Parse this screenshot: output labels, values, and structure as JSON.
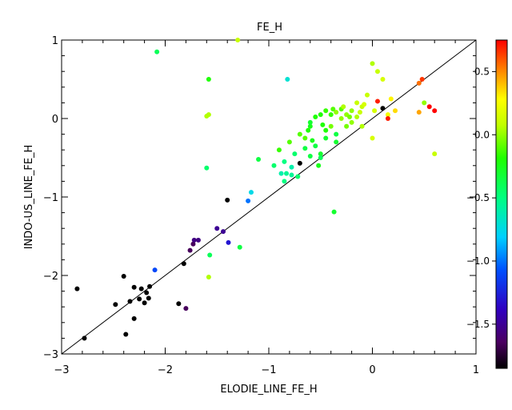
{
  "chart_data": {
    "type": "scatter",
    "title": "FE_H",
    "xlabel": "ELODIE_LINE_FE_H",
    "ylabel": "INDO-US_LINE_FE_H",
    "xlim": [
      -3,
      1
    ],
    "ylim": [
      -3,
      1
    ],
    "xticks": [
      -3,
      -2,
      -1,
      0,
      1
    ],
    "xtick_labels": [
      "−3",
      "−2",
      "−1",
      "0",
      "1"
    ],
    "yticks": [
      -3,
      -2,
      -1,
      0,
      1
    ],
    "ytick_labels": [
      "−3",
      "−2",
      "−1",
      "0",
      "1"
    ],
    "reference_line": "y = x",
    "grid": false,
    "colorbar": {
      "colormap": "rainbow",
      "range": [
        -1.85,
        0.75
      ],
      "ticks": [
        0.5,
        0.0,
        -0.5,
        -1.0,
        -1.5
      ],
      "tick_labels": [
        "0.5",
        "0.0",
        "−0.5",
        "−1.0",
        "−1.5"
      ]
    },
    "points": [
      {
        "x": -2.85,
        "y": -2.17,
        "c": -1.85
      },
      {
        "x": -2.78,
        "y": -2.8,
        "c": -1.85
      },
      {
        "x": -2.48,
        "y": -2.37,
        "c": -1.85
      },
      {
        "x": -2.4,
        "y": -2.01,
        "c": -1.85
      },
      {
        "x": -2.38,
        "y": -2.75,
        "c": -1.85
      },
      {
        "x": -2.34,
        "y": -2.33,
        "c": -1.85
      },
      {
        "x": -2.3,
        "y": -2.15,
        "c": -1.85
      },
      {
        "x": -2.3,
        "y": -2.55,
        "c": -1.85
      },
      {
        "x": -2.25,
        "y": -2.3,
        "c": -1.85
      },
      {
        "x": -2.23,
        "y": -2.17,
        "c": -1.85
      },
      {
        "x": -2.2,
        "y": -2.35,
        "c": -1.85
      },
      {
        "x": -2.18,
        "y": -2.22,
        "c": -1.85
      },
      {
        "x": -2.16,
        "y": -2.29,
        "c": -1.85
      },
      {
        "x": -2.15,
        "y": -2.14,
        "c": -1.85
      },
      {
        "x": -1.87,
        "y": -2.36,
        "c": -1.85
      },
      {
        "x": -1.82,
        "y": -1.85,
        "c": -1.85
      },
      {
        "x": -1.4,
        "y": -1.04,
        "c": -1.85
      },
      {
        "x": -0.7,
        "y": -0.57,
        "c": -1.85
      },
      {
        "x": 0.1,
        "y": 0.13,
        "c": -1.85
      },
      {
        "x": -1.8,
        "y": -2.42,
        "c": -1.65
      },
      {
        "x": -1.76,
        "y": -1.68,
        "c": -1.65
      },
      {
        "x": -1.73,
        "y": -1.6,
        "c": -1.65
      },
      {
        "x": -1.72,
        "y": -1.55,
        "c": -1.55
      },
      {
        "x": -1.68,
        "y": -1.55,
        "c": -1.55
      },
      {
        "x": -1.5,
        "y": -1.4,
        "c": -1.5
      },
      {
        "x": -1.44,
        "y": -1.44,
        "c": -1.5
      },
      {
        "x": -1.39,
        "y": -1.58,
        "c": -1.3
      },
      {
        "x": -2.1,
        "y": -1.93,
        "c": -1.1
      },
      {
        "x": -1.2,
        "y": -1.05,
        "c": -1.0
      },
      {
        "x": -1.17,
        "y": -0.94,
        "c": -0.75
      },
      {
        "x": -0.82,
        "y": 0.5,
        "c": -0.7
      },
      {
        "x": -0.88,
        "y": -0.7,
        "c": -0.6
      },
      {
        "x": -0.83,
        "y": -0.7,
        "c": -0.55
      },
      {
        "x": -0.78,
        "y": -0.72,
        "c": -0.55
      },
      {
        "x": -0.85,
        "y": -0.8,
        "c": -0.5
      },
      {
        "x": -0.72,
        "y": -0.74,
        "c": -0.45
      },
      {
        "x": -2.08,
        "y": 0.85,
        "c": -0.4
      },
      {
        "x": -1.6,
        "y": -0.63,
        "c": -0.45
      },
      {
        "x": -1.57,
        "y": -1.74,
        "c": -0.4
      },
      {
        "x": -1.28,
        "y": -1.64,
        "c": -0.35
      },
      {
        "x": -1.1,
        "y": -0.52,
        "c": -0.35
      },
      {
        "x": -0.6,
        "y": -0.48,
        "c": -0.35
      },
      {
        "x": -0.5,
        "y": -0.45,
        "c": -0.3
      },
      {
        "x": -0.35,
        "y": -0.3,
        "c": -0.3
      },
      {
        "x": -0.37,
        "y": -1.19,
        "c": -0.3
      },
      {
        "x": -0.6,
        "y": -0.1,
        "c": -0.25
      },
      {
        "x": -0.55,
        "y": 0.02,
        "c": -0.2
      },
      {
        "x": -0.5,
        "y": 0.05,
        "c": -0.2
      },
      {
        "x": -0.45,
        "y": 0.1,
        "c": -0.15
      },
      {
        "x": -1.58,
        "y": 0.5,
        "c": -0.2
      },
      {
        "x": -0.9,
        "y": -0.4,
        "c": -0.15
      },
      {
        "x": -0.8,
        "y": -0.3,
        "c": -0.1
      },
      {
        "x": -0.7,
        "y": -0.2,
        "c": -0.1
      },
      {
        "x": -0.65,
        "y": -0.25,
        "c": -0.1
      },
      {
        "x": -0.4,
        "y": -0.1,
        "c": -0.05
      },
      {
        "x": -0.3,
        "y": 0.0,
        "c": 0.0
      },
      {
        "x": -0.25,
        "y": 0.05,
        "c": 0.0
      },
      {
        "x": -0.2,
        "y": 0.1,
        "c": 0.0
      },
      {
        "x": -1.6,
        "y": 0.03,
        "c": 0.05
      },
      {
        "x": -1.58,
        "y": 0.05,
        "c": 0.05
      },
      {
        "x": -1.58,
        "y": -2.02,
        "c": 0.05
      },
      {
        "x": -1.3,
        "y": 1.0,
        "c": 0.1
      },
      {
        "x": 0.0,
        "y": 0.7,
        "c": 0.05
      },
      {
        "x": -0.15,
        "y": 0.2,
        "c": 0.1
      },
      {
        "x": -0.1,
        "y": 0.15,
        "c": 0.1
      },
      {
        "x": -0.05,
        "y": 0.3,
        "c": 0.1
      },
      {
        "x": 0.05,
        "y": 0.6,
        "c": 0.1
      },
      {
        "x": 0.0,
        "y": -0.25,
        "c": 0.15
      },
      {
        "x": 0.1,
        "y": 0.5,
        "c": 0.15
      },
      {
        "x": 0.15,
        "y": 0.05,
        "c": 0.25
      },
      {
        "x": 0.18,
        "y": 0.25,
        "c": 0.3
      },
      {
        "x": 0.22,
        "y": 0.1,
        "c": 0.35
      },
      {
        "x": 0.45,
        "y": 0.45,
        "c": 0.55
      },
      {
        "x": 0.45,
        "y": 0.08,
        "c": 0.45
      },
      {
        "x": 0.05,
        "y": 0.22,
        "c": 0.7
      },
      {
        "x": 0.15,
        "y": 0.0,
        "c": 0.7
      },
      {
        "x": 0.55,
        "y": 0.15,
        "c": 0.75
      },
      {
        "x": 0.6,
        "y": 0.1,
        "c": 0.75
      },
      {
        "x": 0.48,
        "y": 0.5,
        "c": 0.65
      },
      {
        "x": 0.6,
        "y": -0.45,
        "c": 0.1
      },
      {
        "x": 0.5,
        "y": 0.2,
        "c": 0.0
      },
      {
        "x": -0.6,
        "y": -0.05,
        "c": -0.3
      },
      {
        "x": -0.35,
        "y": -0.2,
        "c": -0.35
      },
      {
        "x": -0.75,
        "y": -0.45,
        "c": -0.45
      },
      {
        "x": -0.95,
        "y": -0.6,
        "c": -0.45
      },
      {
        "x": -0.55,
        "y": -0.35,
        "c": -0.35
      },
      {
        "x": -0.45,
        "y": -0.25,
        "c": -0.3
      },
      {
        "x": -0.52,
        "y": -0.6,
        "c": -0.25
      },
      {
        "x": -0.62,
        "y": -0.15,
        "c": -0.2
      },
      {
        "x": -0.4,
        "y": 0.05,
        "c": -0.15
      },
      {
        "x": -0.3,
        "y": 0.12,
        "c": -0.1
      },
      {
        "x": -0.25,
        "y": -0.1,
        "c": -0.05
      },
      {
        "x": -0.2,
        "y": -0.05,
        "c": 0.0
      },
      {
        "x": -0.35,
        "y": 0.08,
        "c": 0.0
      },
      {
        "x": -0.15,
        "y": 0.02,
        "c": 0.05
      },
      {
        "x": -0.1,
        "y": -0.1,
        "c": 0.05
      },
      {
        "x": -0.28,
        "y": 0.15,
        "c": 0.05
      },
      {
        "x": -0.12,
        "y": 0.08,
        "c": 0.1
      },
      {
        "x": -0.08,
        "y": 0.18,
        "c": 0.15
      },
      {
        "x": 0.02,
        "y": 0.1,
        "c": 0.15
      },
      {
        "x": -0.45,
        "y": -0.15,
        "c": -0.2
      },
      {
        "x": -0.65,
        "y": -0.38,
        "c": -0.35
      },
      {
        "x": -0.85,
        "y": -0.55,
        "c": -0.5
      },
      {
        "x": -0.78,
        "y": -0.62,
        "c": -0.6
      },
      {
        "x": -0.5,
        "y": -0.5,
        "c": -0.4
      },
      {
        "x": -0.58,
        "y": -0.28,
        "c": -0.25
      },
      {
        "x": -0.48,
        "y": -0.08,
        "c": -0.2
      },
      {
        "x": -0.38,
        "y": 0.12,
        "c": -0.1
      },
      {
        "x": -0.22,
        "y": 0.02,
        "c": -0.05
      }
    ]
  }
}
